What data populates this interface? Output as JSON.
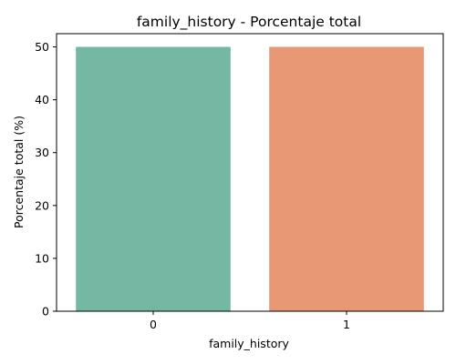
{
  "chart_data": {
    "type": "bar",
    "title": "family_history - Porcentaje total",
    "xlabel": "family_history",
    "ylabel": "Porcentaje total (%)",
    "categories": [
      "0",
      "1"
    ],
    "values": [
      50,
      50
    ],
    "colors": [
      "#74b7a2",
      "#e99875"
    ],
    "ylim": [
      0,
      52.5
    ],
    "yticks": [
      0,
      10,
      20,
      30,
      40,
      50
    ],
    "grid": false
  }
}
